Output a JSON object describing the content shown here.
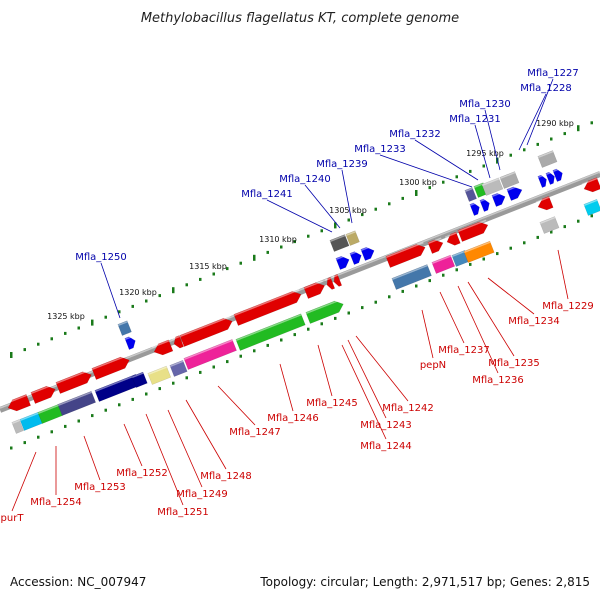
{
  "title": "Methylobacillus flagellatus KT, complete genome",
  "accession": "Accession: NC_007947",
  "topology": "Topology: circular; Length: 2,971,517 bp; Genes: 2,815",
  "colors": {
    "backbone": "#808080",
    "tick": "#1a7a1a",
    "upper_label": "#0000aa",
    "lower_label": "#cc0000"
  },
  "ruler_ticks": [
    {
      "label": "1290 kbp"
    },
    {
      "label": "1295 kbp"
    },
    {
      "label": "1300 kbp"
    },
    {
      "label": "1305 kbp"
    },
    {
      "label": "1310 kbp"
    },
    {
      "label": "1315 kbp"
    },
    {
      "label": "1320 kbp"
    },
    {
      "label": "1325 kbp"
    }
  ],
  "upper_genes": [
    {
      "name": "Mfla_1227",
      "color": "#0000dd"
    },
    {
      "name": "Mfla_1228",
      "color": "#0000dd"
    },
    {
      "name": "Mfla_1230",
      "color": "#0000dd"
    },
    {
      "name": "Mfla_1231",
      "color": "#0000dd"
    },
    {
      "name": "Mfla_1232",
      "color": "#0000dd"
    },
    {
      "name": "Mfla_1233",
      "color": "#0000dd"
    },
    {
      "name": "Mfla_1239",
      "color": "#0000dd"
    },
    {
      "name": "Mfla_1240",
      "color": "#0000dd"
    },
    {
      "name": "Mfla_1241",
      "color": "#0000dd"
    },
    {
      "name": "Mfla_1250",
      "color": "#0000dd"
    }
  ],
  "lower_genes": [
    {
      "name": "Mfla_1229"
    },
    {
      "name": "Mfla_1234"
    },
    {
      "name": "Mfla_1235"
    },
    {
      "name": "Mfla_1236"
    },
    {
      "name": "Mfla_1237"
    },
    {
      "name": "pepN"
    },
    {
      "name": "Mfla_1242"
    },
    {
      "name": "Mfla_1243"
    },
    {
      "name": "Mfla_1244"
    },
    {
      "name": "Mfla_1245"
    },
    {
      "name": "Mfla_1246"
    },
    {
      "name": "Mfla_1247"
    },
    {
      "name": "Mfla_1248"
    },
    {
      "name": "Mfla_1249"
    },
    {
      "name": "Mfla_1251"
    },
    {
      "name": "Mfla_1252"
    },
    {
      "name": "Mfla_1253"
    },
    {
      "name": "Mfla_1254"
    },
    {
      "name": "purT"
    }
  ]
}
